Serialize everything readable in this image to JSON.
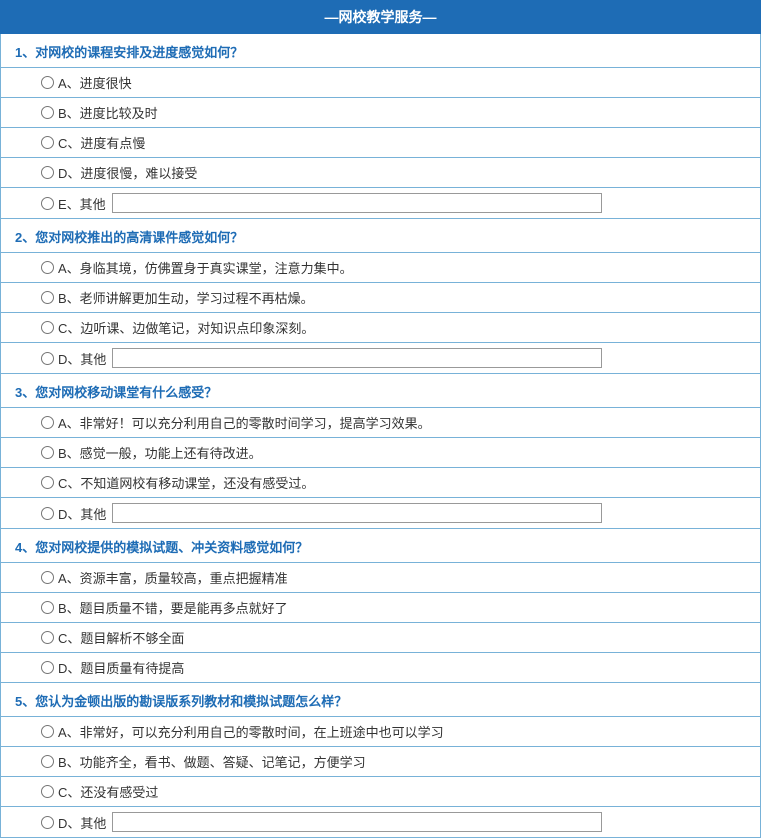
{
  "header_title": "—网校教学服务—",
  "questions": [
    {
      "title": "1、对网校的课程安排及进度感觉如何？",
      "options": [
        {
          "label": "A、进度很快",
          "has_input": false
        },
        {
          "label": "B、进度比较及时",
          "has_input": false
        },
        {
          "label": "C、进度有点慢",
          "has_input": false
        },
        {
          "label": "D、进度很慢，难以接受",
          "has_input": false
        },
        {
          "label": "E、其他",
          "has_input": true,
          "input_value": ""
        }
      ]
    },
    {
      "title": "2、您对网校推出的高清课件感觉如何？",
      "options": [
        {
          "label": "A、身临其境，仿佛置身于真实课堂，注意力集中。",
          "has_input": false
        },
        {
          "label": "B、老师讲解更加生动，学习过程不再枯燥。",
          "has_input": false
        },
        {
          "label": "C、边听课、边做笔记，对知识点印象深刻。",
          "has_input": false
        },
        {
          "label": "D、其他",
          "has_input": true,
          "input_value": ""
        }
      ]
    },
    {
      "title": "3、您对网校移动课堂有什么感受？",
      "options": [
        {
          "label": "A、非常好！可以充分利用自己的零散时间学习，提高学习效果。",
          "has_input": false
        },
        {
          "label": "B、感觉一般，功能上还有待改进。",
          "has_input": false
        },
        {
          "label": "C、不知道网校有移动课堂，还没有感受过。",
          "has_input": false
        },
        {
          "label": "D、其他",
          "has_input": true,
          "input_value": ""
        }
      ]
    },
    {
      "title": "4、您对网校提供的模拟试题、冲关资料感觉如何？",
      "options": [
        {
          "label": "A、资源丰富，质量较高，重点把握精准",
          "has_input": false
        },
        {
          "label": "B、题目质量不错，要是能再多点就好了",
          "has_input": false
        },
        {
          "label": "C、题目解析不够全面",
          "has_input": false
        },
        {
          "label": "D、题目质量有待提高",
          "has_input": false
        }
      ]
    },
    {
      "title": "5、您认为金顿出版的勘误版系列教材和模拟试题怎么样？",
      "options": [
        {
          "label": "A、非常好，可以充分利用自己的零散时间，在上班途中也可以学习",
          "has_input": false
        },
        {
          "label": "B、功能齐全，看书、做题、答疑、记笔记，方便学习",
          "has_input": false
        },
        {
          "label": "C、还没有感受过",
          "has_input": false
        },
        {
          "label": "D、其他",
          "has_input": true,
          "input_value": ""
        }
      ]
    }
  ]
}
